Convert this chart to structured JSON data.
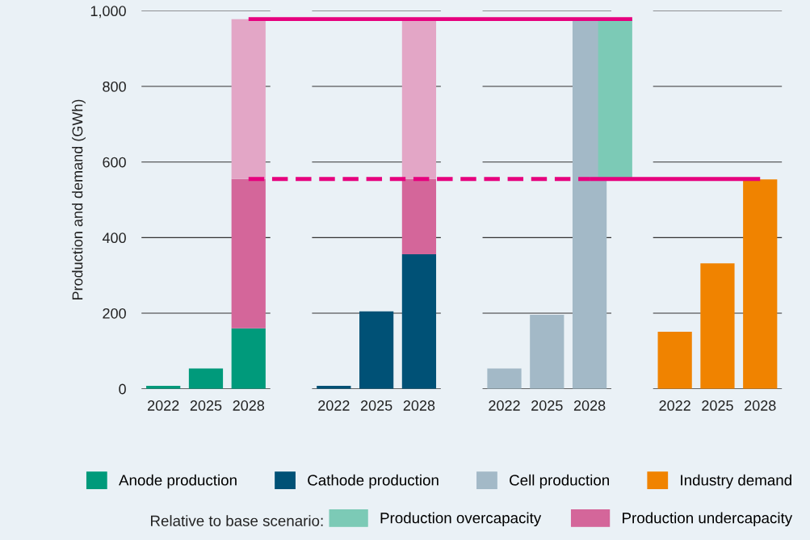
{
  "chart_data": {
    "type": "bar",
    "stacked": true,
    "ylabel": "Production and demand (GWh)",
    "categories": [
      "2022",
      "2025",
      "2028",
      null,
      "2022",
      "2025",
      "2028",
      null,
      "2022",
      "2025",
      "2028",
      null,
      "2022",
      "2025",
      "2028"
    ],
    "ylim": [
      0,
      1000
    ],
    "yticks": [
      0,
      200,
      400,
      600,
      800,
      {
        "value": 1000,
        "label": "1,000"
      }
    ],
    "grid": "y",
    "legend": "bottom",
    "legend_title": "Relative to base scenario:",
    "series": [
      {
        "name": "Anode production",
        "color": "#009a7b",
        "values": [
          8,
          54,
          160,
          null,
          null,
          null,
          null,
          null,
          null,
          null,
          null,
          null,
          null,
          null,
          null
        ]
      },
      {
        "name": "Cathode production",
        "color": "#005176",
        "values": [
          null,
          null,
          null,
          null,
          8,
          205,
          356,
          null,
          null,
          null,
          null,
          null,
          null,
          null,
          null
        ]
      },
      {
        "name": "Cell production",
        "color": "#a3b9c7",
        "values": [
          null,
          null,
          null,
          null,
          null,
          null,
          null,
          null,
          54,
          196,
          978,
          null,
          null,
          null,
          null
        ]
      },
      {
        "name": "Industry demand",
        "color": "#f08300",
        "values": [
          null,
          null,
          null,
          null,
          null,
          null,
          null,
          null,
          null,
          null,
          null,
          null,
          151,
          332,
          554
        ]
      },
      {
        "name": "Production undercapacity",
        "color": "#d4669a",
        "values": [
          null,
          null,
          395,
          null,
          null,
          null,
          199,
          null,
          null,
          null,
          null,
          null,
          null,
          null,
          null
        ]
      },
      {
        "color": "#e3a6c6",
        "values": [
          null,
          null,
          423,
          null,
          null,
          null,
          423,
          null,
          null,
          null,
          null,
          null,
          null,
          null,
          null
        ]
      },
      {
        "name": "Production overcapacity",
        "color": "#7ccab6",
        "base": [
          null,
          null,
          null,
          null,
          null,
          null,
          null,
          null,
          null,
          null,
          null,
          555,
          null,
          null,
          null
        ],
        "values": [
          null,
          null,
          null,
          null,
          null,
          null,
          null,
          null,
          null,
          null,
          null,
          423,
          null,
          null,
          null
        ]
      },
      {
        "type": "line",
        "color": "#e6007e",
        "line_style": "solid",
        "values": [
          null,
          null,
          978,
          978,
          978,
          978,
          978,
          978,
          978,
          978,
          978,
          978,
          null,
          null,
          null
        ]
      },
      {
        "type": "line",
        "color": "#e6007e",
        "line_style": "dashed",
        "values": [
          null,
          null,
          555,
          555,
          555,
          555,
          555,
          555,
          555,
          555,
          555,
          null,
          null,
          null,
          null
        ]
      },
      {
        "type": "line",
        "color": "#e6007e",
        "line_style": "solid",
        "values": [
          null,
          null,
          null,
          null,
          null,
          null,
          null,
          null,
          null,
          null,
          555,
          555,
          555,
          555,
          555
        ]
      }
    ]
  }
}
